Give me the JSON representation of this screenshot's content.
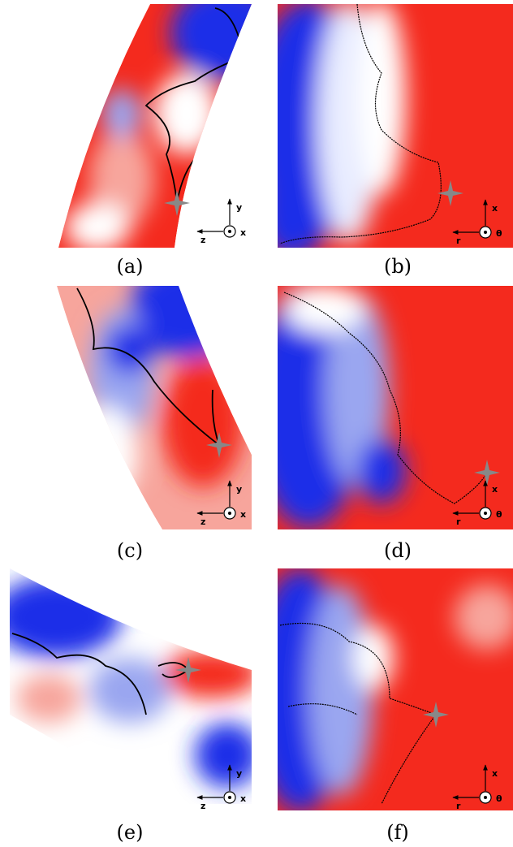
{
  "panels": [
    {
      "label": "(a)",
      "axes": {
        "up": "y",
        "left": "z",
        "out": "x"
      }
    },
    {
      "label": "(b)",
      "axes": {
        "up": "x",
        "left": "r",
        "out": "θ"
      }
    },
    {
      "label": "(c)",
      "axes": {
        "up": "y",
        "left": "z",
        "out": "x"
      }
    },
    {
      "label": "(d)",
      "axes": {
        "up": "x",
        "left": "r",
        "out": "θ"
      }
    },
    {
      "label": "(e)",
      "axes": {
        "up": "y",
        "left": "z",
        "out": "x"
      }
    },
    {
      "label": "(f)",
      "axes": {
        "up": "x",
        "left": "r",
        "out": "θ"
      }
    }
  ]
}
